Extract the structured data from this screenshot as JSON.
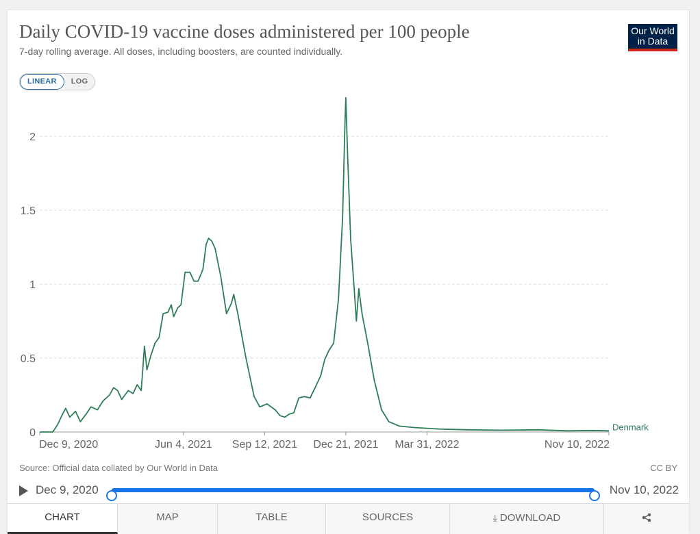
{
  "header": {
    "title": "Daily COVID-19 vaccine doses administered per 100 people",
    "subtitle": "7-day rolling average. All doses, including boosters, are counted individually.",
    "logo_line1": "Our World",
    "logo_line2": "in Data"
  },
  "scale": {
    "linear": "LINEAR",
    "log": "LOG",
    "selected": "LINEAR"
  },
  "chart_data": {
    "type": "line",
    "title": "Daily COVID-19 vaccine doses administered per 100 people",
    "subtitle": "7-day rolling average. All doses, including boosters, are counted individually.",
    "xlabel": "",
    "ylabel": "",
    "x_range": [
      "2020-12-09",
      "2022-11-10"
    ],
    "ylim": [
      0,
      2.25
    ],
    "yticks": [
      0,
      0.5,
      1,
      1.5,
      2
    ],
    "ytick_labels": [
      "0",
      "0.5",
      "1",
      "1.5",
      "2"
    ],
    "xticks": [
      "2020-12-09",
      "2021-06-04",
      "2021-09-12",
      "2021-12-21",
      "2022-03-31",
      "2022-11-10"
    ],
    "xtick_labels": [
      "Dec 9, 2020",
      "Jun 4, 2021",
      "Sep 12, 2021",
      "Dec 21, 2021",
      "Mar 31, 2022",
      "Nov 10, 2022"
    ],
    "grid": "horizontal dashed",
    "colors": {
      "line": "#2e7d58",
      "grid": "#dddddd",
      "axis": "#666666"
    },
    "series": [
      {
        "name": "Denmark",
        "points": [
          [
            "2020-12-09",
            0
          ],
          [
            "2020-12-25",
            0
          ],
          [
            "2020-12-31",
            0.05
          ],
          [
            "2021-01-06",
            0.12
          ],
          [
            "2021-01-10",
            0.16
          ],
          [
            "2021-01-15",
            0.1
          ],
          [
            "2021-01-22",
            0.14
          ],
          [
            "2021-01-28",
            0.07
          ],
          [
            "2021-02-04",
            0.12
          ],
          [
            "2021-02-10",
            0.17
          ],
          [
            "2021-02-18",
            0.15
          ],
          [
            "2021-02-25",
            0.21
          ],
          [
            "2021-03-05",
            0.25
          ],
          [
            "2021-03-10",
            0.3
          ],
          [
            "2021-03-15",
            0.28
          ],
          [
            "2021-03-20",
            0.22
          ],
          [
            "2021-03-28",
            0.28
          ],
          [
            "2021-04-03",
            0.26
          ],
          [
            "2021-04-08",
            0.32
          ],
          [
            "2021-04-13",
            0.28
          ],
          [
            "2021-04-17",
            0.58
          ],
          [
            "2021-04-20",
            0.42
          ],
          [
            "2021-04-25",
            0.52
          ],
          [
            "2021-04-30",
            0.6
          ],
          [
            "2021-05-05",
            0.64
          ],
          [
            "2021-05-10",
            0.8
          ],
          [
            "2021-05-16",
            0.81
          ],
          [
            "2021-05-20",
            0.86
          ],
          [
            "2021-05-23",
            0.78
          ],
          [
            "2021-05-28",
            0.84
          ],
          [
            "2021-06-01",
            0.86
          ],
          [
            "2021-06-06",
            1.08
          ],
          [
            "2021-06-12",
            1.08
          ],
          [
            "2021-06-17",
            1.02
          ],
          [
            "2021-06-22",
            1.02
          ],
          [
            "2021-06-28",
            1.1
          ],
          [
            "2021-07-02",
            1.27
          ],
          [
            "2021-07-05",
            1.31
          ],
          [
            "2021-07-09",
            1.29
          ],
          [
            "2021-07-13",
            1.24
          ],
          [
            "2021-07-20",
            1.05
          ],
          [
            "2021-07-27",
            0.8
          ],
          [
            "2021-08-02",
            0.87
          ],
          [
            "2021-08-05",
            0.93
          ],
          [
            "2021-08-10",
            0.8
          ],
          [
            "2021-08-20",
            0.5
          ],
          [
            "2021-08-30",
            0.24
          ],
          [
            "2021-09-06",
            0.17
          ],
          [
            "2021-09-15",
            0.19
          ],
          [
            "2021-09-25",
            0.15
          ],
          [
            "2021-10-01",
            0.11
          ],
          [
            "2021-10-07",
            0.1
          ],
          [
            "2021-10-12",
            0.12
          ],
          [
            "2021-10-18",
            0.13
          ],
          [
            "2021-10-24",
            0.23
          ],
          [
            "2021-10-31",
            0.24
          ],
          [
            "2021-11-07",
            0.23
          ],
          [
            "2021-11-14",
            0.31
          ],
          [
            "2021-11-20",
            0.38
          ],
          [
            "2021-11-25",
            0.49
          ],
          [
            "2021-11-30",
            0.55
          ],
          [
            "2021-12-06",
            0.6
          ],
          [
            "2021-12-12",
            0.9
          ],
          [
            "2021-12-17",
            1.45
          ],
          [
            "2021-12-20",
            2.1
          ],
          [
            "2021-12-21",
            2.26
          ],
          [
            "2021-12-23",
            1.9
          ],
          [
            "2021-12-27",
            1.3
          ],
          [
            "2021-12-31",
            0.99
          ],
          [
            "2022-01-03",
            0.75
          ],
          [
            "2022-01-06",
            0.97
          ],
          [
            "2022-01-10",
            0.8
          ],
          [
            "2022-01-17",
            0.6
          ],
          [
            "2022-01-25",
            0.35
          ],
          [
            "2022-02-03",
            0.15
          ],
          [
            "2022-02-12",
            0.07
          ],
          [
            "2022-02-25",
            0.04
          ],
          [
            "2022-03-15",
            0.03
          ],
          [
            "2022-04-15",
            0.02
          ],
          [
            "2022-05-20",
            0.015
          ],
          [
            "2022-07-01",
            0.012
          ],
          [
            "2022-08-15",
            0.015
          ],
          [
            "2022-09-20",
            0.008
          ],
          [
            "2022-10-20",
            0.01
          ],
          [
            "2022-11-10",
            0.008
          ]
        ]
      }
    ]
  },
  "footer": {
    "source": "Source: Official data collated by Our World in Data",
    "license": "CC BY"
  },
  "timeline": {
    "start": "Dec 9, 2020",
    "end": "Nov 10, 2022",
    "range_fraction": [
      0,
      1
    ]
  },
  "tabs": [
    "CHART",
    "MAP",
    "TABLE",
    "SOURCES",
    "DOWNLOAD",
    ""
  ],
  "icons": {
    "play": "play-icon",
    "download": "download-icon",
    "share": "share-icon"
  }
}
